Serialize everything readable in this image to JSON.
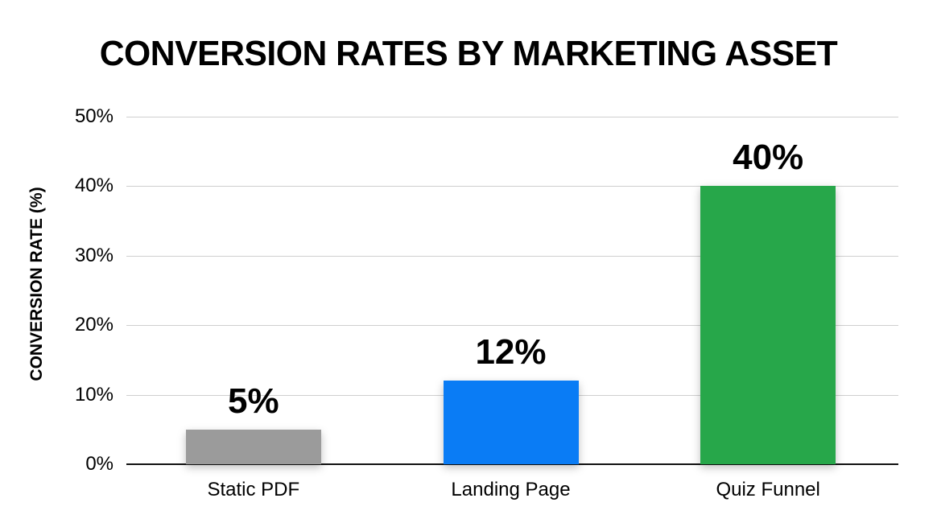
{
  "chart_data": {
    "type": "bar",
    "title": "CONVERSION RATES BY MARKETING ASSET",
    "xlabel": "",
    "ylabel": "CONVERSION RATE (%)",
    "categories": [
      "Static PDF",
      "Landing Page",
      "Quiz Funnel"
    ],
    "values": [
      5,
      12,
      40
    ],
    "value_labels": [
      "5%",
      "12%",
      "40%"
    ],
    "colors": [
      "#9b9b9b",
      "#0a7cf5",
      "#27a74a"
    ],
    "ylim": [
      0,
      50
    ],
    "yticks": [
      0,
      10,
      20,
      30,
      40,
      50
    ],
    "ytick_labels": [
      "0%",
      "10%",
      "20%",
      "30%",
      "40%",
      "50%"
    ],
    "grid": true,
    "legend": null
  }
}
